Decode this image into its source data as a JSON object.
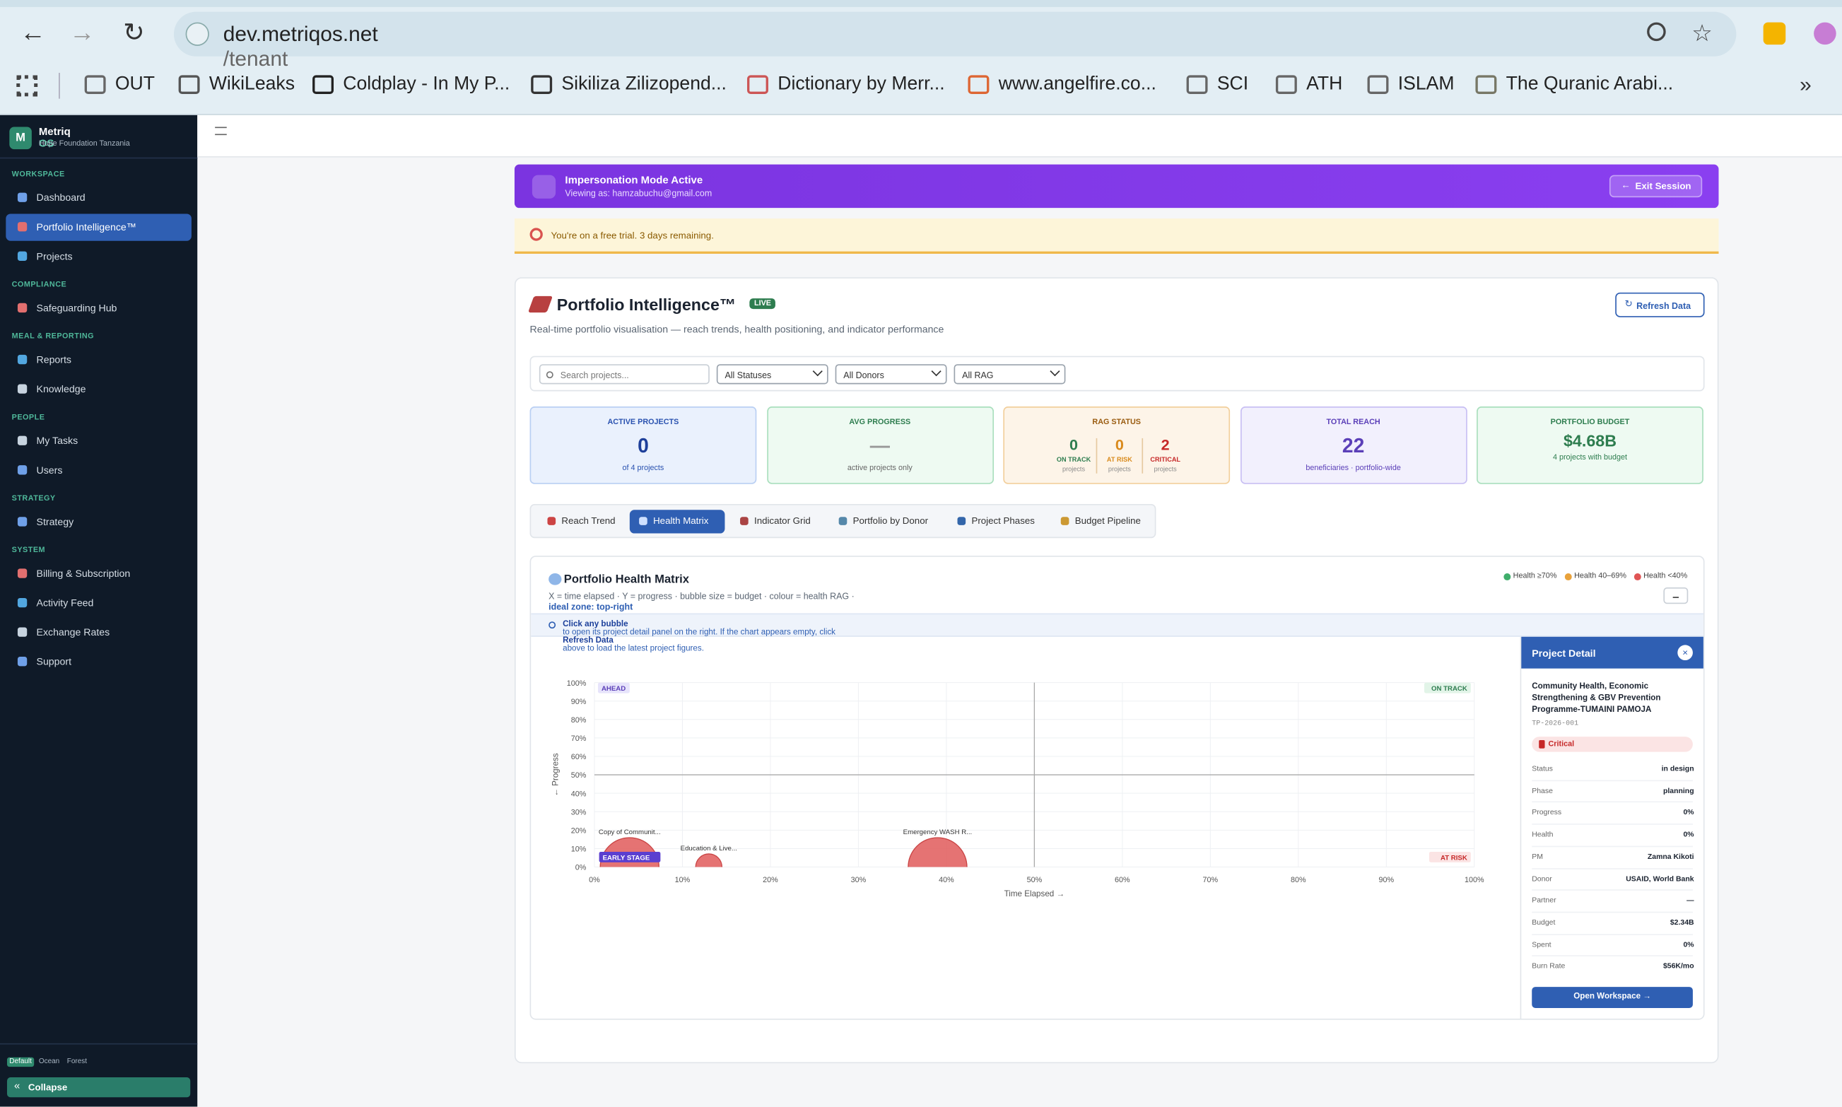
{
  "browser": {
    "url_host": "dev.metriqos.net",
    "url_path": "/tenant",
    "bookmarks": [
      "OUT",
      "WikiLeaks",
      "Coldplay - In My P...",
      "Sikiliza Zilizopend...",
      "Dictionary by Merr...",
      "www.angelfire.co...",
      "SCI",
      "ATH",
      "ISLAM",
      "The Quranic Arabi..."
    ]
  },
  "sidebar": {
    "logo": "M",
    "brand_a": "Metriq",
    "brand_b": "OS",
    "org": "Hope Foundation Tanzania",
    "active": "Portfolio Intelligence™",
    "sections": [
      {
        "title": "WORKSPACE",
        "items": [
          "Dashboard",
          "Portfolio Intelligence™",
          "Projects"
        ]
      },
      {
        "title": "COMPLIANCE",
        "items": [
          "Safeguarding Hub"
        ]
      },
      {
        "title": "MEAL & REPORTING",
        "items": [
          "Reports",
          "Knowledge"
        ]
      },
      {
        "title": "PEOPLE",
        "items": [
          "My Tasks",
          "Users"
        ]
      },
      {
        "title": "STRATEGY",
        "items": [
          "Strategy"
        ]
      },
      {
        "title": "SYSTEM",
        "items": [
          "Billing & Subscription",
          "Activity Feed",
          "Exchange Rates",
          "Support"
        ]
      }
    ],
    "themes": [
      "Default",
      "Ocean",
      "Forest"
    ],
    "collapse": "Collapse"
  },
  "impersonation": {
    "title": "Impersonation Mode Active",
    "viewing": "Viewing as: hamzabuchu@gmail.com",
    "exit": "Exit Session"
  },
  "trial": "You're on a free trial. 3 days remaining.",
  "page": {
    "title": "Portfolio Intelligence™",
    "live": "LIVE",
    "subtitle": "Real-time portfolio visualisation — reach trends, health positioning, and indicator performance",
    "refresh": "Refresh Data"
  },
  "filters": {
    "search": "Search projects...",
    "selects": [
      "All Statuses",
      "All Donors",
      "All RAG"
    ]
  },
  "kpis": {
    "active": {
      "label": "ACTIVE PROJECTS",
      "value": 0,
      "note": "of 4 projects"
    },
    "progress": {
      "label": "AVG PROGRESS",
      "value": "—",
      "note": "active projects only"
    },
    "rag": {
      "label": "RAG STATUS",
      "items": [
        {
          "value": 0,
          "label": "ON TRACK",
          "sub": "projects"
        },
        {
          "value": 0,
          "label": "AT RISK",
          "sub": "projects"
        },
        {
          "value": 2,
          "label": "CRITICAL",
          "sub": "projects"
        }
      ]
    },
    "reach": {
      "label": "TOTAL REACH",
      "value": 22,
      "note": "beneficiaries · portfolio-wide"
    },
    "budget": {
      "label": "PORTFOLIO BUDGET",
      "value": "$4.68B",
      "note": "4 projects with budget"
    }
  },
  "tabs": {
    "items": [
      "Reach Trend",
      "Health Matrix",
      "Indicator Grid",
      "Portfolio by Donor",
      "Project Phases",
      "Budget Pipeline"
    ],
    "active": "Health Matrix"
  },
  "panel": {
    "title": "Portfolio Health Matrix",
    "subtitle": "X = time elapsed · Y = progress · bubble size = budget · colour = health RAG ·",
    "subtitle_em": "ideal zone: top-right",
    "legend": [
      {
        "label": "Health ≥70%",
        "color": "#3fae6b"
      },
      {
        "label": "Health 40–69%",
        "color": "#e9a23b"
      },
      {
        "label": "Health <40%",
        "color": "#e05555"
      }
    ],
    "info": [
      "Click any bubble",
      "to open its project detail panel on the right. If the chart appears empty, click",
      "Refresh Data",
      "above to load the latest project figures."
    ]
  },
  "chart_data": {
    "type": "scatter",
    "xlabel": "Time Elapsed →",
    "ylabel": "← Progress",
    "xlim": [
      0,
      100
    ],
    "ylim": [
      0,
      100
    ],
    "xticks": [
      {
        "value": 0,
        "label": "0%"
      },
      {
        "value": 10,
        "label": "10%"
      },
      {
        "value": 20,
        "label": "20%"
      },
      {
        "value": 30,
        "label": "30%"
      },
      {
        "value": 40,
        "label": "40%"
      },
      {
        "value": 50,
        "label": "50%"
      },
      {
        "value": 60,
        "label": "60%"
      },
      {
        "value": 70,
        "label": "70%"
      },
      {
        "value": 80,
        "label": "80%"
      },
      {
        "value": 90,
        "label": "90%"
      },
      {
        "value": 100,
        "label": "100%"
      }
    ],
    "yticks": [
      {
        "value": 0,
        "label": "0%"
      },
      {
        "value": 10,
        "label": "10%"
      },
      {
        "value": 20,
        "label": "20%"
      },
      {
        "value": 30,
        "label": "30%"
      },
      {
        "value": 40,
        "label": "40%"
      },
      {
        "value": 50,
        "label": "50%"
      },
      {
        "value": 60,
        "label": "60%"
      },
      {
        "value": 70,
        "label": "70%"
      },
      {
        "value": 80,
        "label": "80%"
      },
      {
        "value": 90,
        "label": "90%"
      },
      {
        "value": 100,
        "label": "100%"
      }
    ],
    "reference_x": 50,
    "reference_y": 50,
    "grid": true,
    "quadrants": {
      "top_left": "AHEAD",
      "top_right": "ON TRACK",
      "bottom_left": "EARLY STAGE",
      "bottom_right": "AT RISK"
    },
    "labels": [
      "Copy of Communit...",
      "Education & Live...",
      "Emergency WASH R..."
    ],
    "x": [
      4,
      13,
      39
    ],
    "values": [
      0,
      0,
      0
    ],
    "sizes": [
      2.0,
      0.4,
      2.0
    ],
    "color": "#e05a5a"
  },
  "detail": {
    "title": "Project Detail",
    "name": "Community Health, Economic Strengthening & GBV Prevention Programme-TUMAINI PAMOJA",
    "code": "TP-2026-001",
    "rag": "Critical",
    "fields": [
      [
        "Status",
        "in design"
      ],
      [
        "Phase",
        "planning"
      ],
      [
        "Progress",
        "0%"
      ],
      [
        "Health",
        "0%"
      ],
      [
        "PM",
        "Zamna Kikoti"
      ],
      [
        "Donor",
        "USAID, World Bank"
      ],
      [
        "Partner",
        "—"
      ],
      [
        "Budget",
        "$2.34B"
      ],
      [
        "Spent",
        "0%"
      ],
      [
        "Burn Rate",
        "$56K/mo"
      ]
    ],
    "button": "Open Workspace →"
  }
}
